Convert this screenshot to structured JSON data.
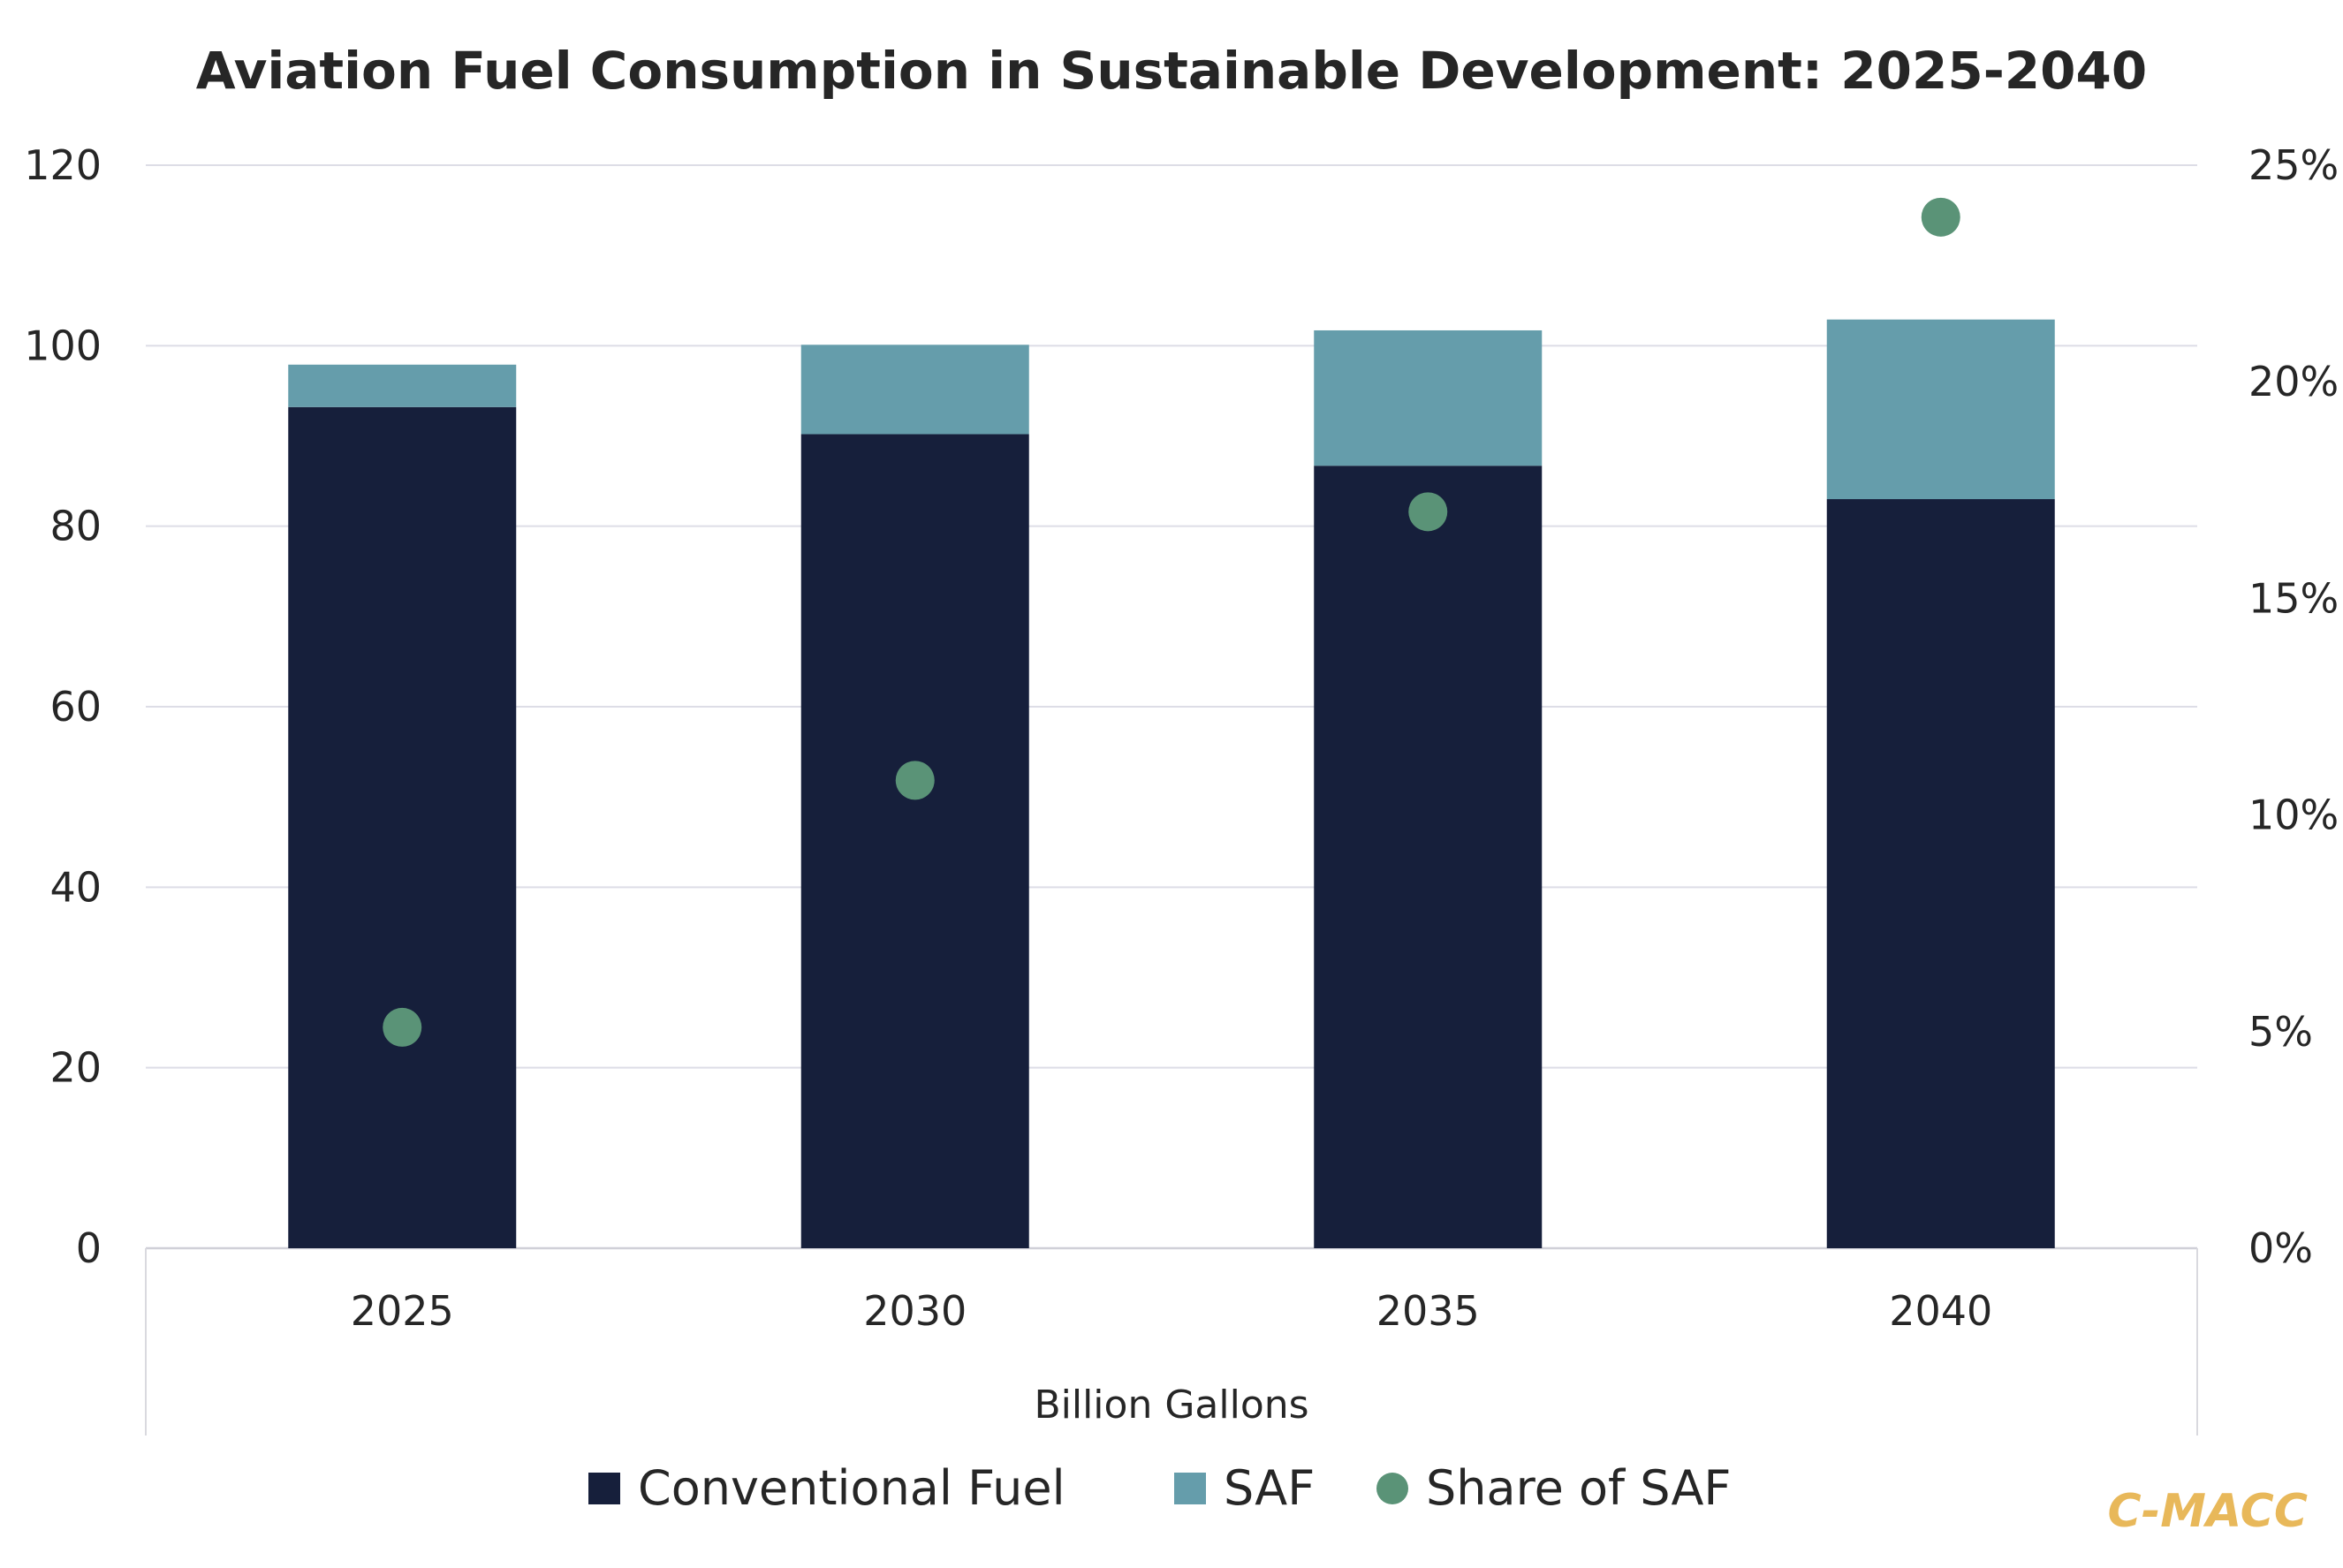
{
  "chart_data": {
    "type": "bar",
    "stacked": true,
    "title": "Aviation Fuel Consumption in Sustainable Development: 2025-2040",
    "xlabel": "Billion Gallons",
    "categories": [
      "2025",
      "2030",
      "2035",
      "2040"
    ],
    "series": [
      {
        "name": "Conventional Fuel",
        "kind": "bar",
        "axis": "left",
        "color": "#161f3b",
        "values": [
          93.2,
          90.2,
          86.7,
          83.0
        ]
      },
      {
        "name": "SAF",
        "kind": "bar",
        "axis": "left",
        "color": "#659dab",
        "values": [
          4.7,
          9.9,
          15.0,
          19.9
        ]
      },
      {
        "name": "Share of SAF",
        "kind": "scatter",
        "axis": "right",
        "color": "#5a9377",
        "values": [
          5.1,
          10.8,
          17.0,
          23.8
        ]
      }
    ],
    "ylim": [
      0,
      120
    ],
    "yticks": [
      "0",
      "20",
      "40",
      "60",
      "80",
      "100",
      "120"
    ],
    "y2lim": [
      0,
      25
    ],
    "y2ticks": [
      "0%",
      "5%",
      "10%",
      "15%",
      "20%",
      "25%"
    ],
    "grid": true,
    "legend": "bottom"
  },
  "branding": {
    "text": "C-MACC",
    "color": "#e8b85a"
  }
}
